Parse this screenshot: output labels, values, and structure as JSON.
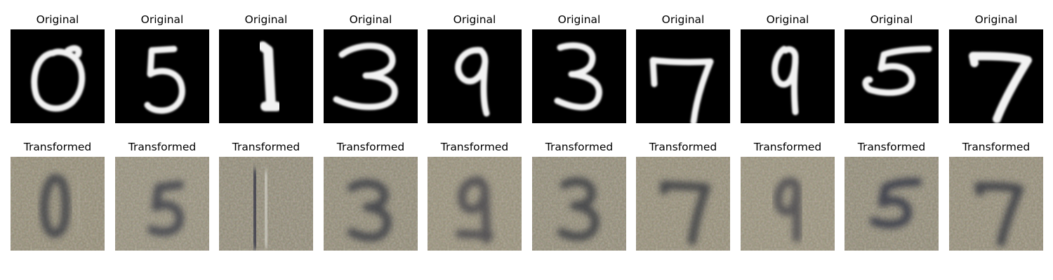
{
  "figure": {
    "original_title": "Original",
    "transformed_title": "Transformed",
    "digits": [
      "0",
      "5",
      "1",
      "3",
      "9",
      "3",
      "7",
      "9",
      "5",
      "7"
    ],
    "colors": {
      "original_background": "#000000",
      "original_digit": "#f2f2f2",
      "transformed_background": "#8c8670",
      "transformed_digit_dark": "#2b2f3a"
    }
  },
  "originals": [
    {
      "title": "Original",
      "digit": "0"
    },
    {
      "title": "Original",
      "digit": "5"
    },
    {
      "title": "Original",
      "digit": "1"
    },
    {
      "title": "Original",
      "digit": "3"
    },
    {
      "title": "Original",
      "digit": "9"
    },
    {
      "title": "Original",
      "digit": "3"
    },
    {
      "title": "Original",
      "digit": "7"
    },
    {
      "title": "Original",
      "digit": "9"
    },
    {
      "title": "Original",
      "digit": "5"
    },
    {
      "title": "Original",
      "digit": "7"
    }
  ],
  "transformed": [
    {
      "title": "Transformed",
      "digit": "0"
    },
    {
      "title": "Transformed",
      "digit": "5"
    },
    {
      "title": "Transformed",
      "digit": "1"
    },
    {
      "title": "Transformed",
      "digit": "3"
    },
    {
      "title": "Transformed",
      "digit": "9"
    },
    {
      "title": "Transformed",
      "digit": "3"
    },
    {
      "title": "Transformed",
      "digit": "7"
    },
    {
      "title": "Transformed",
      "digit": "9"
    },
    {
      "title": "Transformed",
      "digit": "5"
    },
    {
      "title": "Transformed",
      "digit": "7"
    }
  ]
}
